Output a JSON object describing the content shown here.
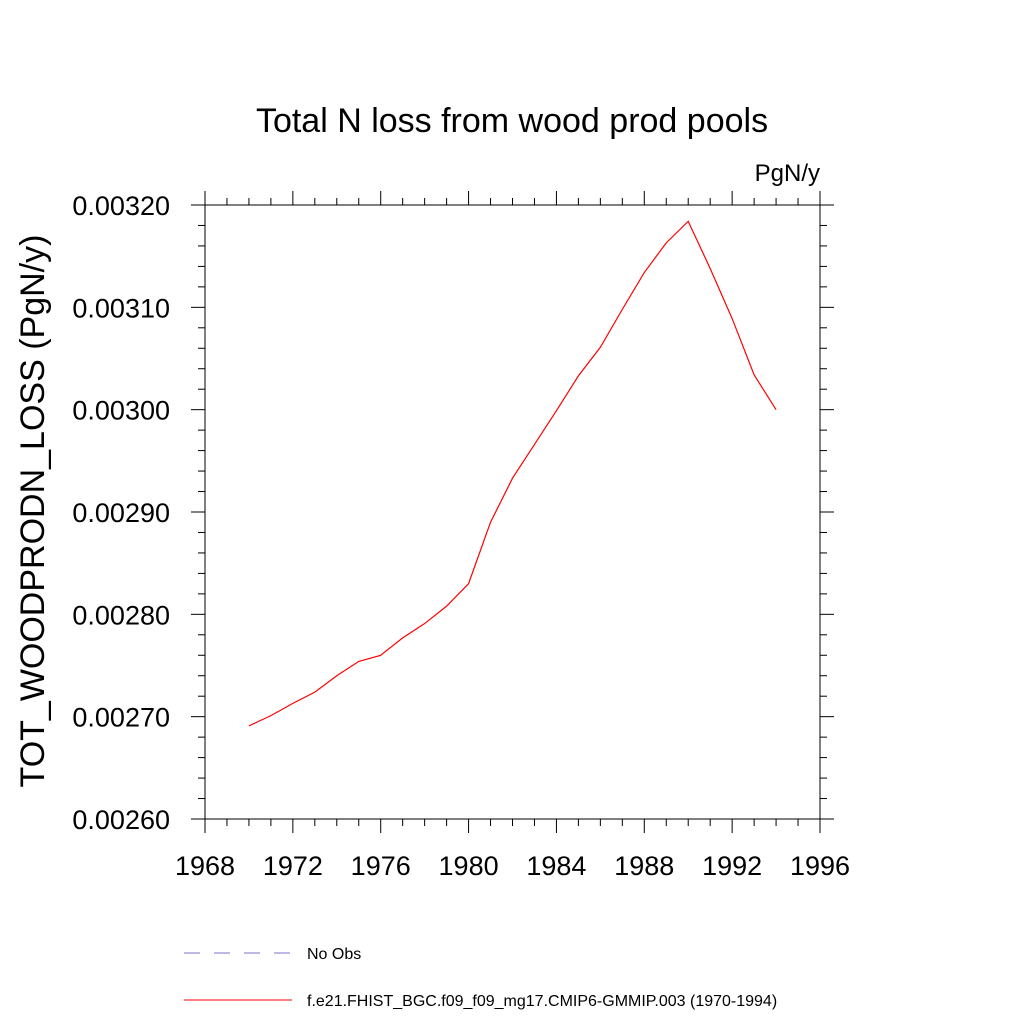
{
  "chart_data": {
    "type": "line",
    "title": "Total N loss from wood prod pools",
    "units_label": "PgN/y",
    "ylabel": "TOT_WOODPRODN_LOSS  (PgN/y)",
    "xlabel": "",
    "xlim": [
      1968,
      1996
    ],
    "ylim": [
      0.0026,
      0.0032
    ],
    "x_ticks": [
      1968,
      1972,
      1976,
      1980,
      1984,
      1988,
      1992,
      1996
    ],
    "y_ticks": [
      "0.00260",
      "0.00270",
      "0.00280",
      "0.00290",
      "0.00300",
      "0.00310",
      "0.00320"
    ],
    "grid": false,
    "legend_position": "bottom",
    "series": [
      {
        "name": "f.e21.FHIST_BGC.f09_f09_mg17.CMIP6-GMMIP.003 (1970-1994)",
        "color": "#ff0000",
        "x": [
          1970,
          1971,
          1972,
          1973,
          1974,
          1975,
          1976,
          1977,
          1978,
          1979,
          1980,
          1981,
          1982,
          1983,
          1984,
          1985,
          1986,
          1987,
          1988,
          1989,
          1990,
          1991,
          1992,
          1993,
          1994
        ],
        "y": [
          0.002691,
          0.002701,
          0.002713,
          0.002724,
          0.00274,
          0.002754,
          0.00276,
          0.002777,
          0.002791,
          0.002808,
          0.00283,
          0.00289,
          0.002933,
          0.002966,
          0.002999,
          0.003033,
          0.003061,
          0.003098,
          0.003134,
          0.003163,
          0.003184,
          0.003138,
          0.003089,
          0.003034,
          0.003
        ]
      }
    ],
    "legend": [
      {
        "label": "No Obs",
        "color": "#7b72c8",
        "dash": true
      },
      {
        "label": "f.e21.FHIST_BGC.f09_f09_mg17.CMIP6-GMMIP.003 (1970-1994)",
        "color": "#ff0000",
        "dash": false
      }
    ]
  }
}
